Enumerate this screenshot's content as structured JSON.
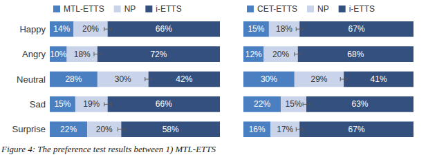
{
  "chart_data": [
    {
      "type": "bar",
      "orientation": "horizontal",
      "stacked": true,
      "legend": "top",
      "data_labels": true,
      "tick_labels": "y",
      "categories": [
        "Happy",
        "Angry",
        "Neutral",
        "Sad",
        "Surprise"
      ],
      "xlim": [
        0,
        100
      ],
      "series": [
        {
          "name": "MTL-ETTS",
          "color": "#4a7fc1",
          "values": [
            14,
            10,
            28,
            15,
            22
          ],
          "value_labels": [
            "14%",
            "10%",
            "28%",
            "15%",
            "22%"
          ]
        },
        {
          "name": "NP",
          "color": "#c9d3ea",
          "values": [
            20,
            18,
            30,
            19,
            20
          ],
          "value_labels": [
            "20%",
            "18%",
            "30%",
            "19%",
            "20%"
          ],
          "errors": [
            2,
            2,
            2,
            2,
            2
          ]
        },
        {
          "name": "i-ETTS",
          "color": "#34507f",
          "values": [
            66,
            72,
            42,
            66,
            58
          ],
          "value_labels": [
            "66%",
            "72%",
            "42%",
            "66%",
            "58%"
          ]
        }
      ]
    },
    {
      "type": "bar",
      "orientation": "horizontal",
      "stacked": true,
      "legend": "top",
      "data_labels": true,
      "tick_labels": false,
      "categories": [
        "Happy",
        "Angry",
        "Neutral",
        "Sad",
        "Surprise"
      ],
      "xlim": [
        0,
        100
      ],
      "series": [
        {
          "name": "CET-ETTS",
          "color": "#4a7fc1",
          "values": [
            15,
            12,
            30,
            22,
            16
          ],
          "value_labels": [
            "15%",
            "12%",
            "30%",
            "22%",
            "16%"
          ]
        },
        {
          "name": "NP",
          "color": "#c9d3ea",
          "values": [
            18,
            20,
            29,
            15,
            17
          ],
          "value_labels": [
            "18%",
            "20%",
            "29%",
            "15%",
            "17%"
          ],
          "errors": [
            2,
            2,
            2,
            2,
            2
          ]
        },
        {
          "name": "i-ETTS",
          "color": "#34507f",
          "values": [
            67,
            68,
            41,
            63,
            67
          ],
          "value_labels": [
            "67%",
            "68%",
            "41%",
            "63%",
            "67%"
          ]
        }
      ]
    }
  ],
  "caption": "Figure 4: The preference test results between 1) MTL-ETTS"
}
